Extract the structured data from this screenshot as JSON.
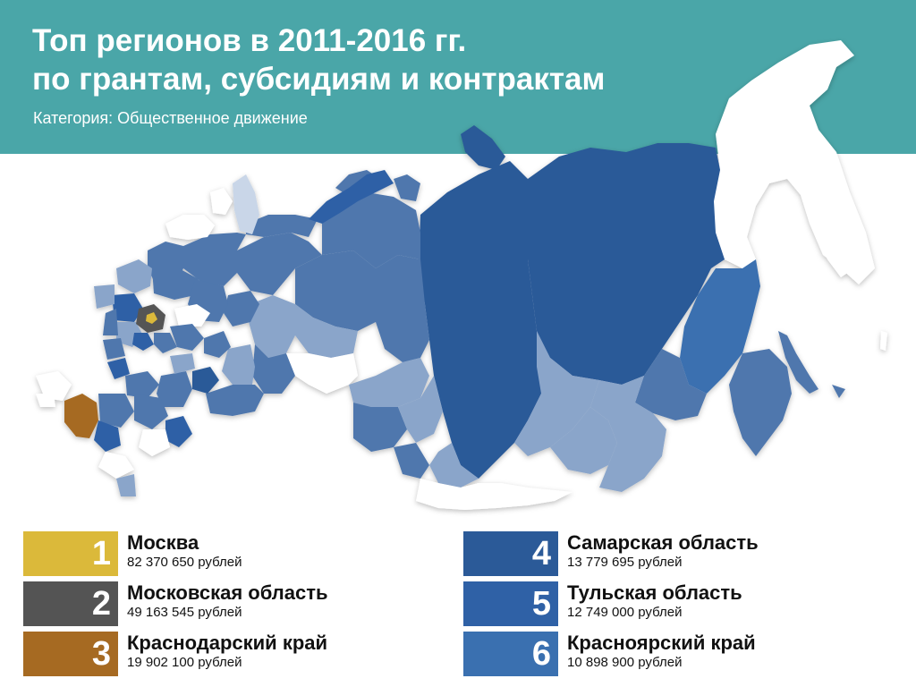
{
  "header": {
    "title_line1": "Топ регионов в 2011-2016 гг.",
    "title_line2": "по грантам, субсидиям и контрактам",
    "subtitle": "Категория: Общественное движение"
  },
  "colors": {
    "header_bg": "#4aa6a8",
    "rank1": "#dbb93a",
    "rank2": "#545454",
    "rank3": "#a66a22",
    "rank4": "#2b5a98",
    "rank5": "#2f61a6",
    "rank6": "#3a70b0",
    "map_dark": "#2b5a98",
    "map_mid": "#4f77ad",
    "map_light": "#8aa5ca",
    "map_pale": "#c9d6e8",
    "map_empty": "#ffffff"
  },
  "legend": [
    {
      "rank": "1",
      "name": "Москва",
      "amount": "82 370 650 рублей",
      "color": "#dbb93a"
    },
    {
      "rank": "2",
      "name": "Московская область",
      "amount": "49 163 545 рублей",
      "color": "#545454"
    },
    {
      "rank": "3",
      "name": "Краснодарский край",
      "amount": "19 902 100 рублей",
      "color": "#a66a22"
    },
    {
      "rank": "4",
      "name": "Самарская область",
      "amount": "13 779 695 рублей",
      "color": "#2b5a98"
    },
    {
      "rank": "5",
      "name": "Тульская область",
      "amount": "12 749 000 рублей",
      "color": "#2f61a6"
    },
    {
      "rank": "6",
      "name": "Красноярский край",
      "amount": "10 898 900 рублей",
      "color": "#3a70b0"
    }
  ]
}
